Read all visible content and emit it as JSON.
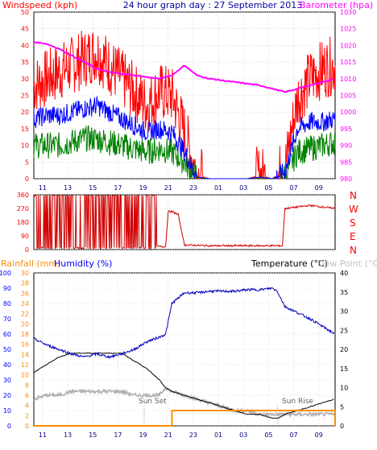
{
  "chart_data": [
    {
      "type": "line",
      "title": "24 hour graph day : 27 September 2013",
      "left_axis_label": "Windspeed (kph)",
      "right_axis_label": "Barometer (hpa)",
      "left_ylim": [
        0,
        50
      ],
      "left_ticks": [
        0,
        5,
        10,
        15,
        20,
        25,
        30,
        35,
        40,
        45,
        50
      ],
      "right_ylim": [
        980,
        1030
      ],
      "right_ticks": [
        980,
        985,
        990,
        995,
        1000,
        1005,
        1010,
        1015,
        1020,
        1025,
        1030
      ],
      "x_ticks": [
        "11",
        "13",
        "15",
        "17",
        "19",
        "21",
        "23",
        "01",
        "03",
        "05",
        "07",
        "09"
      ],
      "grid": true,
      "colors": {
        "gust": "#ff0000",
        "average": "#0000ff",
        "direction_speed": "#008000",
        "barometer": "#ff00ff",
        "title": "#0000a0",
        "left_label": "#ff0000",
        "right_label": "#ff00ff"
      },
      "x_hours": [
        0,
        1,
        2,
        3,
        4,
        5,
        6,
        7,
        8,
        9,
        10,
        11,
        12,
        13,
        14,
        15,
        16,
        17,
        18,
        19,
        20,
        21,
        22,
        23,
        24
      ],
      "series": [
        {
          "key": "gust",
          "values": [
            28,
            30,
            32,
            34,
            36,
            38,
            34,
            30,
            26,
            22,
            26,
            25,
            14,
            1,
            0,
            0,
            0,
            0,
            1,
            0,
            3,
            24,
            30,
            33,
            34
          ]
        },
        {
          "key": "average",
          "values": [
            18,
            19,
            19,
            20,
            21,
            22,
            20,
            18,
            16,
            14,
            15,
            14,
            8,
            0.5,
            0,
            0,
            0,
            0,
            0.5,
            0,
            2,
            15,
            17,
            17,
            18
          ]
        },
        {
          "key": "direction_speed",
          "values": [
            10,
            10,
            10,
            11,
            12,
            12,
            11,
            10,
            9,
            8,
            9,
            8,
            5,
            0.3,
            0,
            0,
            0,
            0,
            0.3,
            0,
            1,
            8,
            9,
            10,
            11
          ]
        },
        {
          "key": "barometer",
          "values": [
            1021,
            1020.5,
            1019,
            1017,
            1015,
            1013,
            1012,
            1011.5,
            1011,
            1010.5,
            1010,
            1011,
            1014,
            1011,
            1010,
            1009.5,
            1009,
            1008.5,
            1008,
            1007,
            1006,
            1007,
            1008,
            1009,
            1010
          ]
        }
      ]
    },
    {
      "type": "line",
      "right_labels": [
        "N",
        "W",
        "S",
        "E",
        "N"
      ],
      "left_ylim": [
        0,
        360
      ],
      "left_ticks": [
        0,
        90,
        180,
        270,
        360
      ],
      "x_ticks": [
        "11",
        "13",
        "15",
        "17",
        "19",
        "21",
        "23",
        "01",
        "03",
        "05",
        "07",
        "09"
      ],
      "colors": {
        "direction": "#d00000",
        "labels": "#ff0000"
      },
      "x_hours": [
        0,
        2,
        4,
        6,
        7,
        8,
        9,
        10,
        10.5,
        10.7,
        11,
        11.5,
        12,
        14,
        16,
        19.8,
        20,
        22,
        24
      ],
      "series": [
        {
          "key": "direction",
          "values": [
            355,
            355,
            355,
            355,
            355,
            30,
            25,
            20,
            20,
            250,
            250,
            230,
            30,
            25,
            25,
            25,
            270,
            290,
            270
          ]
        }
      ]
    },
    {
      "type": "line",
      "rainfall_label": "Rainfall (mm)",
      "humidity_label": "Humidity (%)",
      "temperature_label": "Temperature (°C)",
      "dewpoint_label": "Dew Point (°C)",
      "humidity_ylim": [
        0,
        100
      ],
      "humidity_ticks": [
        0,
        10,
        20,
        30,
        40,
        50,
        60,
        70,
        80,
        90,
        100
      ],
      "rain_ylim": [
        0,
        30
      ],
      "rain_ticks": [
        0,
        2,
        4,
        6,
        8,
        10,
        12,
        14,
        16,
        18,
        20,
        22,
        24,
        26,
        28,
        30
      ],
      "temp_ylim": [
        0,
        40
      ],
      "temp_ticks": [
        0,
        5,
        10,
        15,
        20,
        25,
        30,
        35,
        40
      ],
      "x_ticks": [
        "11",
        "13",
        "15",
        "17",
        "19",
        "21",
        "23",
        "01",
        "03",
        "05",
        "07",
        "09"
      ],
      "sun_set_label": "Sun Set",
      "sun_rise_label": "Sun Rise",
      "sun_set_hour": 8.8,
      "sun_rise_hour": 19.4,
      "colors": {
        "humidity": "#0000c0",
        "temperature": "#000000",
        "dewpoint": "#b0b0b0",
        "rainfall": "#ff8c00",
        "rain_label": "#ff8c00",
        "hum_label": "#0000ff",
        "dew_label": "#c0c0c0"
      },
      "x_hours": [
        0,
        1,
        2,
        3,
        4,
        5,
        6,
        7,
        8,
        9,
        10,
        10.5,
        11,
        12,
        13,
        14,
        15,
        16,
        17,
        18,
        19,
        19.4,
        20,
        21,
        22,
        23,
        24
      ],
      "series": [
        {
          "key": "humidity",
          "values": [
            57,
            53,
            50,
            47,
            45,
            47,
            45,
            47,
            50,
            55,
            58,
            60,
            80,
            87,
            87,
            88,
            88,
            88,
            89,
            89,
            90,
            88,
            78,
            74,
            70,
            65,
            60
          ]
        },
        {
          "key": "temperature",
          "values": [
            14,
            16,
            18,
            19,
            19,
            19,
            19,
            19,
            17,
            15,
            12,
            10,
            9,
            8,
            7,
            6,
            5,
            4,
            3,
            3,
            2,
            2,
            3,
            4,
            5,
            6,
            7
          ]
        },
        {
          "key": "dewpoint",
          "values": [
            7,
            8,
            8,
            9,
            9,
            9,
            9,
            9,
            8,
            8,
            8,
            10,
            9,
            8,
            7,
            6,
            5,
            4,
            4,
            3,
            3,
            3,
            3,
            3,
            3,
            3,
            3
          ]
        },
        {
          "key": "rainfall",
          "values": [
            0,
            0,
            0,
            0,
            0,
            0,
            0,
            0,
            0,
            0,
            0,
            0,
            1,
            1,
            1,
            1,
            1,
            1,
            1,
            1,
            1,
            1,
            1,
            1,
            1,
            1,
            0
          ]
        }
      ]
    }
  ]
}
